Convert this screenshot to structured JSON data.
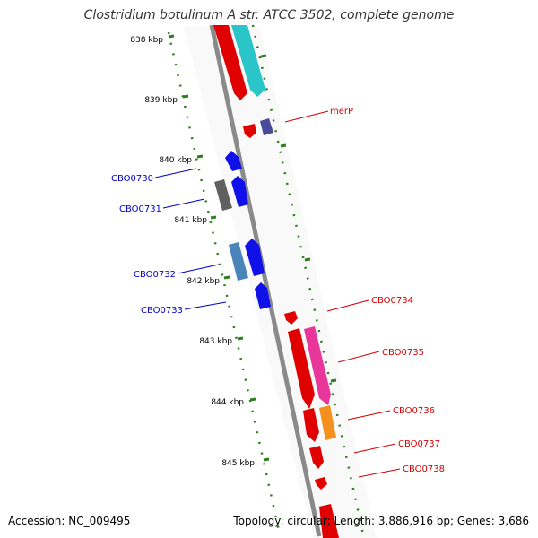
{
  "title": "Clostridium botulinum A str. ATCC 3502, complete genome",
  "footer": {
    "accession": "Accession: NC_009495",
    "summary": "Topology: circular; Length: 3,886,916 bp; Genes: 3,686"
  },
  "colors": {
    "backbone": "#8a8a8a",
    "tick": "#2e7d1e",
    "forward_label": "#d40000",
    "reverse_label": "#0000c8"
  },
  "ticks": [
    "838 kbp",
    "839 kbp",
    "840 kbp",
    "841 kbp",
    "842 kbp",
    "843 kbp",
    "844 kbp",
    "845 kbp"
  ],
  "gene_labels": [
    {
      "name": "merP",
      "strand": "forward"
    },
    {
      "name": "CBO0730",
      "strand": "reverse"
    },
    {
      "name": "CBO0731",
      "strand": "reverse"
    },
    {
      "name": "CBO0732",
      "strand": "reverse"
    },
    {
      "name": "CBO0733",
      "strand": "reverse"
    },
    {
      "name": "CBO0734",
      "strand": "forward"
    },
    {
      "name": "CBO0735",
      "strand": "forward"
    },
    {
      "name": "CBO0736",
      "strand": "forward"
    },
    {
      "name": "CBO0737",
      "strand": "forward"
    },
    {
      "name": "CBO0738",
      "strand": "forward"
    }
  ]
}
